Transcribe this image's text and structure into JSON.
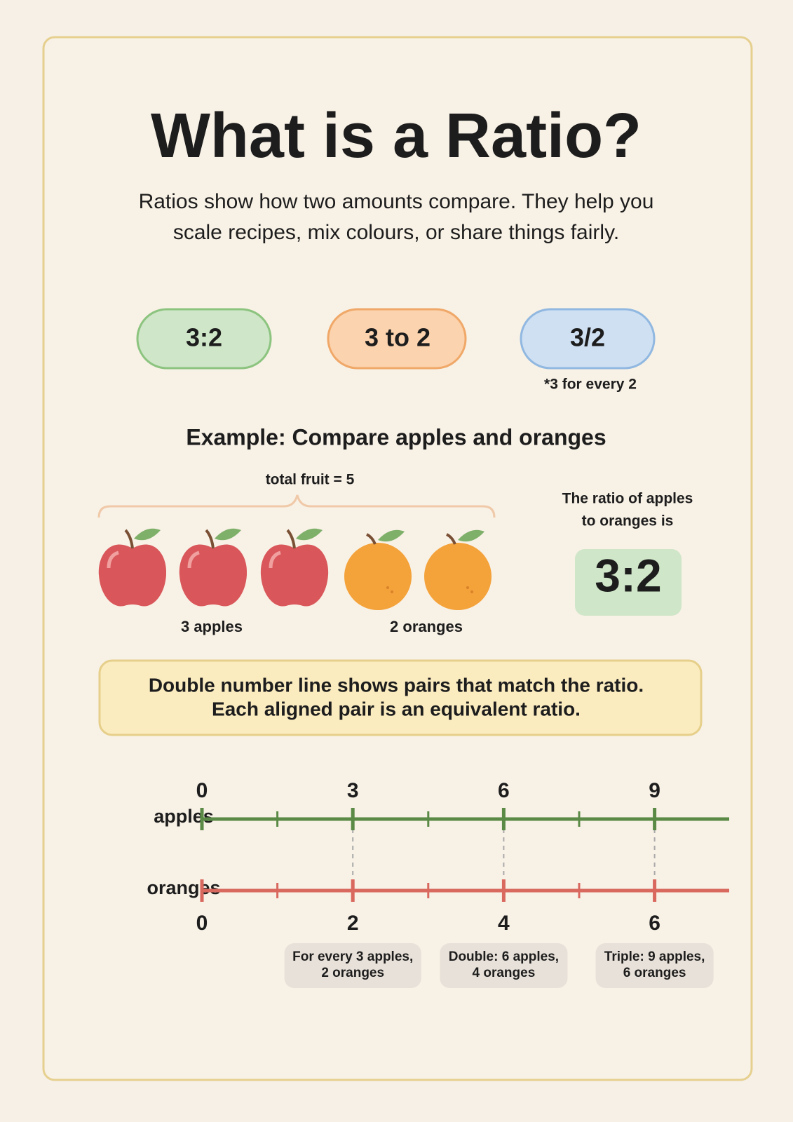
{
  "title": "What is a Ratio?",
  "intro": [
    "Ratios show how two amounts compare. They help you",
    "scale recipes, mix colours, or share things fairly."
  ],
  "notations": [
    {
      "label": "3:2"
    },
    {
      "label": "3 to 2"
    },
    {
      "label": "3/2",
      "note": "*3 for every 2"
    }
  ],
  "example": {
    "heading": "Example: Compare apples and oranges",
    "brace_label": "total fruit = 5",
    "apples_label": "3 apples",
    "oranges_label": "2 oranges",
    "result_text": [
      "The ratio of apples",
      "to oranges is"
    ],
    "result": "3:2"
  },
  "callout": [
    "Double number line shows pairs that match the ratio.",
    "Each aligned pair is an equivalent ratio."
  ],
  "number_line": {
    "rows": [
      {
        "name": "apples",
        "labels": [
          0,
          3,
          6,
          9
        ]
      },
      {
        "name": "oranges",
        "labels": [
          0,
          2,
          4,
          6
        ]
      }
    ],
    "notes": [
      [
        "For every 3 apples,",
        "2 oranges"
      ],
      [
        "Double: 6 apples,",
        "4 oranges"
      ],
      [
        "Triple: 9 apples,",
        "6 oranges"
      ]
    ]
  }
}
